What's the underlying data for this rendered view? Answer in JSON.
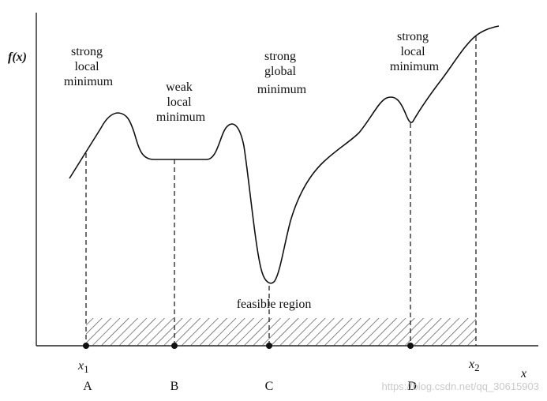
{
  "y_axis_label": "f(x)",
  "x_axis_label": "x",
  "bound_labels": {
    "lower": "x",
    "lower_sub": "1",
    "upper": "x",
    "upper_sub": "2"
  },
  "annotations": {
    "strong_local_left": [
      "strong",
      "local",
      "minimum"
    ],
    "weak_local": [
      "weak",
      "local",
      "minimum"
    ],
    "strong_global": [
      "strong",
      "global",
      "minimum"
    ],
    "strong_local_right": [
      "strong",
      "local",
      "minimum"
    ],
    "feasible_region": "feasible region"
  },
  "points": [
    "A",
    "B",
    "C",
    "D"
  ],
  "watermark": "https://blog.csdn.net/qq_30615903"
}
